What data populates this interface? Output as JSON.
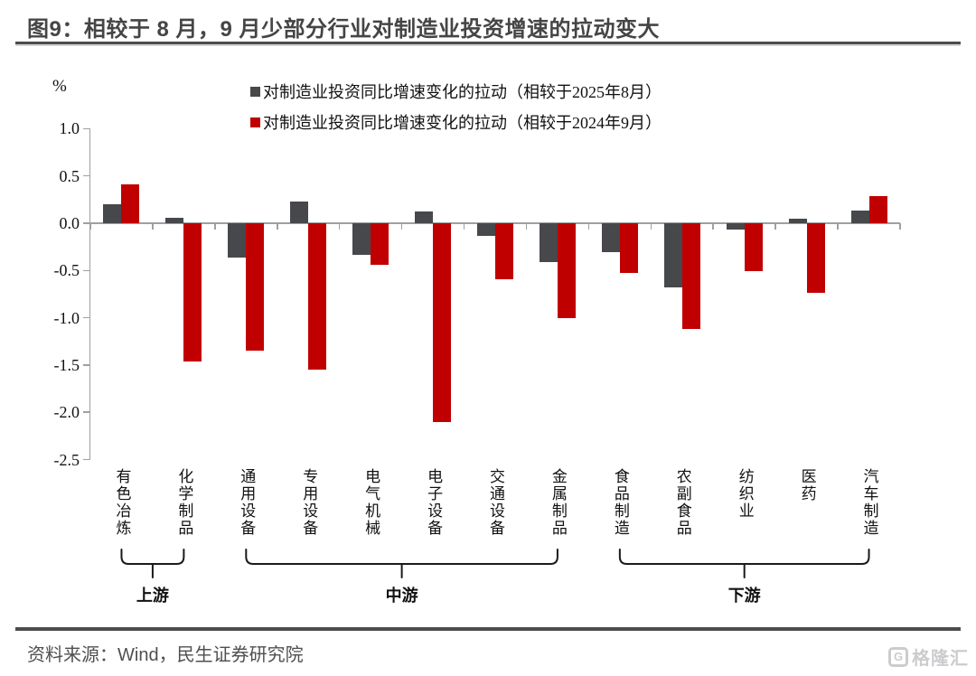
{
  "title": "图9：相较于 8 月，9 月少部分行业对制造业投资增速的拉动变大",
  "source": "资料来源：Wind，民生证券研究院",
  "watermark": {
    "icon": "G",
    "text": "格隆汇"
  },
  "colors": {
    "series_mom": "#47484c",
    "series_yoy": "#c00000",
    "axis": "#a0a0a0",
    "title_text": "#454545",
    "rule": "#4c4c4c"
  },
  "chart_data": {
    "type": "bar",
    "title": "图9：相较于 8 月，9 月少部分行业对制造业投资增速的拉动变大",
    "unit_label": "%",
    "xlabel": "",
    "ylabel": "%",
    "ylim": [
      -2.5,
      1.0
    ],
    "yticks": [
      1.0,
      0.5,
      0.0,
      -0.5,
      -1.0,
      -1.5,
      -2.0,
      -2.5
    ],
    "grid": false,
    "legend_position": "top",
    "categories": [
      "有色冶炼",
      "化学制品",
      "通用设备",
      "专用设备",
      "电气机械",
      "电子设备",
      "交通设备",
      "金属制品",
      "食品制造",
      "农副食品",
      "纺织业",
      "医药",
      "汽车制造"
    ],
    "series": [
      {
        "name": "对制造业投资同比增速变化的拉动（相较于2025年8月）",
        "color": "#47484c",
        "values": [
          0.2,
          0.06,
          -0.36,
          0.23,
          -0.33,
          0.12,
          -0.13,
          -0.41,
          -0.31,
          -0.68,
          -0.07,
          0.05,
          0.13
        ]
      },
      {
        "name": "对制造业投资同比增速变化的拉动（相较于2024年9月）",
        "color": "#c00000",
        "values": [
          0.41,
          -1.46,
          -1.35,
          -1.55,
          -0.44,
          -2.1,
          -0.59,
          -1.0,
          -0.53,
          -1.12,
          -0.51,
          -0.74,
          0.29
        ]
      }
    ],
    "groups": [
      {
        "label": "上游",
        "from": 0,
        "to": 1
      },
      {
        "label": "中游",
        "from": 2,
        "to": 7
      },
      {
        "label": "下游",
        "from": 8,
        "to": 12
      }
    ]
  }
}
